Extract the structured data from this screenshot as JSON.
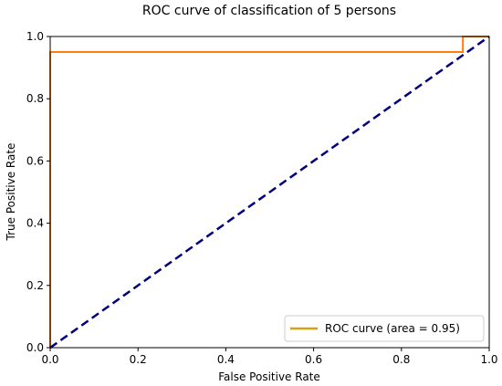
{
  "chart_data": {
    "type": "line",
    "title": "ROC curve of classification of 5 persons",
    "xlabel": "False Positive Rate",
    "ylabel": "True Positive Rate",
    "xlim": [
      0.0,
      1.0
    ],
    "ylim": [
      0.0,
      1.0
    ],
    "xticks": [
      "0.0",
      "0.2",
      "0.4",
      "0.6",
      "0.8",
      "1.0"
    ],
    "yticks": [
      "0.0",
      "0.2",
      "0.4",
      "0.6",
      "0.8",
      "1.0"
    ],
    "grid": false,
    "legend_position": "lower-right",
    "series": [
      {
        "name": "ROC curve (area = 0.95)",
        "color": "#ff7f0e",
        "style": "solid",
        "x": [
          0.0,
          0.0,
          0.94,
          0.94,
          1.0
        ],
        "y": [
          0.0,
          0.95,
          0.95,
          1.0,
          1.0
        ]
      },
      {
        "color": "#000080",
        "style": "dashed",
        "x": [
          0.0,
          1.0
        ],
        "y": [
          0.0,
          1.0
        ]
      }
    ],
    "legend_line_color": "#d4a017"
  }
}
